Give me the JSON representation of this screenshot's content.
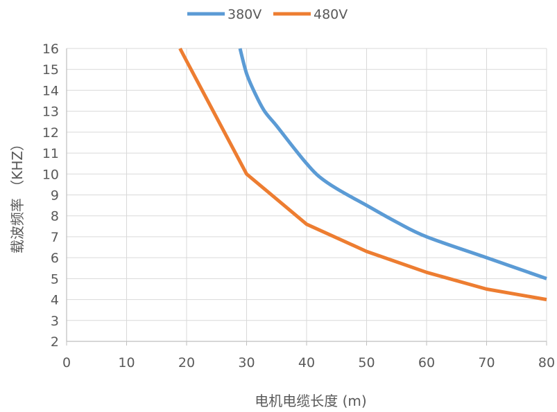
{
  "chart_data": {
    "type": "line",
    "title": "",
    "xlabel": "电机电缆长度 (m)",
    "ylabel": "载波频率 （KHZ）",
    "xlim": [
      0,
      80
    ],
    "ylim": [
      2,
      16
    ],
    "x_ticks": [
      "0",
      "10",
      "20",
      "30",
      "40",
      "50",
      "60",
      "70",
      "80"
    ],
    "y_ticks": [
      "2",
      "3",
      "4",
      "5",
      "6",
      "7",
      "8",
      "9",
      "10",
      "11",
      "12",
      "13",
      "14",
      "15",
      "16"
    ],
    "grid": true,
    "legend_position": "top",
    "series": [
      {
        "name": "380V",
        "color": "#5b9bd5",
        "x": [
          28.9,
          30,
          31.5,
          33,
          35,
          38,
          40,
          42,
          45,
          50,
          55,
          60,
          70,
          80
        ],
        "y": [
          16,
          14.8,
          13.8,
          13.0,
          12.3,
          11.2,
          10.5,
          9.9,
          9.3,
          8.5,
          7.7,
          7.0,
          6.0,
          5.0
        ]
      },
      {
        "name": "480V",
        "color": "#ed7d31",
        "x": [
          18.9,
          20,
          30,
          40,
          50,
          60,
          70,
          80
        ],
        "y": [
          16,
          15.4,
          10,
          7.6,
          6.3,
          5.3,
          4.5,
          4.0
        ]
      }
    ]
  }
}
